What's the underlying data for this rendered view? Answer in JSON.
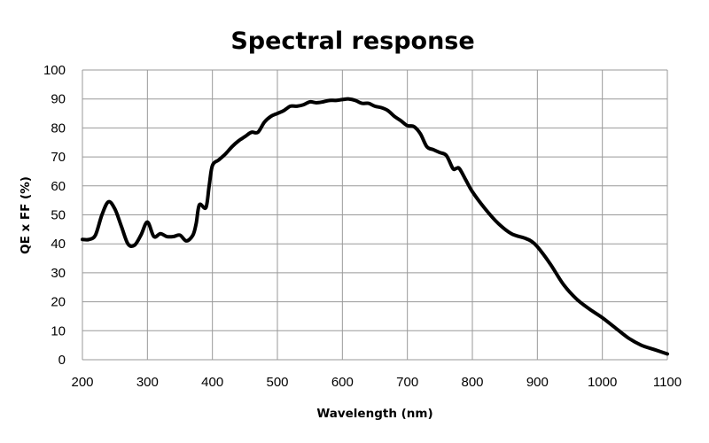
{
  "chart_data": {
    "type": "line",
    "title": "Spectral response",
    "xlabel": "Wavelength (nm)",
    "ylabel": "QE x FF (%)",
    "xlim": [
      200,
      1100
    ],
    "ylim": [
      0,
      100
    ],
    "xticks": [
      200,
      300,
      400,
      500,
      600,
      700,
      800,
      900,
      1000,
      1100
    ],
    "yticks": [
      0,
      10,
      20,
      30,
      40,
      50,
      60,
      70,
      80,
      90,
      100
    ],
    "grid": true,
    "line_color": "#000000",
    "grid_color": "#999999",
    "series": [
      {
        "name": "QE x FF",
        "x": [
          200,
          210,
          220,
          230,
          240,
          250,
          260,
          270,
          280,
          290,
          300,
          310,
          320,
          330,
          340,
          350,
          360,
          370,
          375,
          380,
          390,
          395,
          400,
          410,
          420,
          430,
          440,
          450,
          460,
          470,
          480,
          490,
          500,
          510,
          520,
          530,
          540,
          550,
          560,
          570,
          580,
          590,
          600,
          610,
          620,
          630,
          640,
          650,
          660,
          670,
          680,
          690,
          700,
          710,
          720,
          730,
          740,
          750,
          760,
          770,
          775,
          780,
          790,
          800,
          820,
          840,
          860,
          880,
          890,
          900,
          920,
          940,
          960,
          980,
          1000,
          1020,
          1040,
          1060,
          1080,
          1100
        ],
        "y": [
          41.5,
          41.5,
          43,
          50,
          54.5,
          52,
          46,
          40,
          39.5,
          43,
          47.5,
          42.5,
          43.5,
          42.5,
          42.5,
          43,
          41,
          43,
          47,
          53.5,
          52.5,
          60,
          67,
          69,
          71,
          73.5,
          75.5,
          77,
          78.5,
          78.5,
          82,
          84,
          85,
          86,
          87.5,
          87.5,
          88,
          89,
          88.7,
          89,
          89.5,
          89.5,
          89.8,
          90,
          89.5,
          88.5,
          88.5,
          87.5,
          87,
          86,
          84,
          82.5,
          80.8,
          80.5,
          78,
          73.5,
          72.5,
          71.5,
          70.5,
          66,
          66,
          66,
          62,
          58,
          52,
          47,
          43.5,
          42,
          41,
          39,
          33,
          26,
          21,
          17.5,
          14.5,
          11,
          7.5,
          5,
          3.5,
          2
        ]
      }
    ]
  }
}
